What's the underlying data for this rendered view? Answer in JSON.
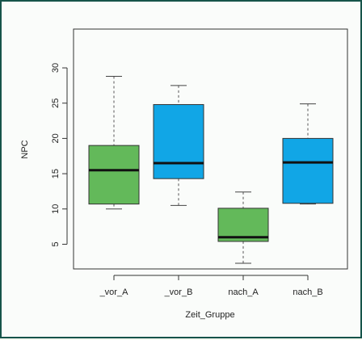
{
  "chart_data": {
    "type": "boxplot",
    "xlabel": "Zeit_Gruppe",
    "ylabel": "NPC",
    "ylim": [
      1.5,
      35.5
    ],
    "yticks": [
      5,
      10,
      15,
      20,
      25,
      30
    ],
    "categories": [
      "_vor_A",
      "_vor_B",
      "nach_A",
      "nach_B"
    ],
    "boxes": [
      {
        "min": 10.0,
        "q1": 10.7,
        "median": 15.5,
        "q3": 19.0,
        "max": 28.8,
        "color": "#63b95a"
      },
      {
        "min": 10.5,
        "q1": 14.3,
        "median": 16.5,
        "q3": 24.8,
        "max": 27.5,
        "color": "#11a6e6"
      },
      {
        "min": 2.3,
        "q1": 5.4,
        "median": 6.0,
        "q3": 10.1,
        "max": 12.4,
        "color": "#63b95a"
      },
      {
        "min": 10.7,
        "q1": 10.8,
        "median": 16.6,
        "q3": 20.0,
        "max": 24.9,
        "color": "#11a6e6"
      }
    ]
  }
}
